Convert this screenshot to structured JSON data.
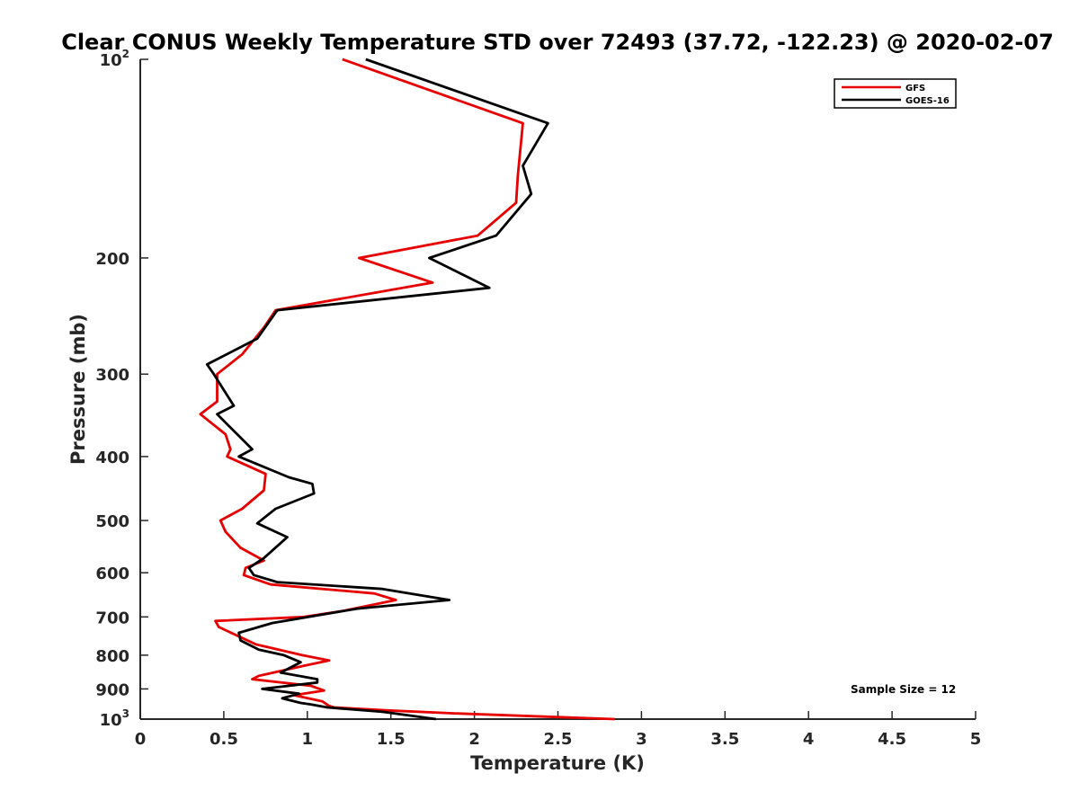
{
  "chart_data": {
    "type": "line",
    "title": "Clear CONUS Weekly Temperature STD over 72493 (37.72, -122.23) @ 2020-02-07",
    "xlabel": "Temperature (K)",
    "ylabel": "Pressure (mb)",
    "xlim": [
      0,
      5
    ],
    "ylim": [
      100,
      1000
    ],
    "y_scale": "log",
    "y_reversed": true,
    "x_ticks": [
      "0",
      "0.5",
      "1",
      "1.5",
      "2",
      "2.5",
      "3",
      "3.5",
      "4",
      "4.5",
      "5"
    ],
    "y_ticks": [
      {
        "value": 100,
        "label": "10",
        "sup": "2"
      },
      {
        "value": 200,
        "label": "200"
      },
      {
        "value": 300,
        "label": "300"
      },
      {
        "value": 400,
        "label": "400"
      },
      {
        "value": 500,
        "label": "500"
      },
      {
        "value": 600,
        "label": "600"
      },
      {
        "value": 700,
        "label": "700"
      },
      {
        "value": 800,
        "label": "800"
      },
      {
        "value": 900,
        "label": "900"
      },
      {
        "value": 1000,
        "label": "10",
        "sup": "3"
      }
    ],
    "grid": false,
    "legend_position": "top-right",
    "annotation": "Sample Size = 12",
    "series": [
      {
        "name": "GFS",
        "color": "#e60000",
        "points": [
          [
            1.21,
            100
          ],
          [
            2.29,
            125
          ],
          [
            2.26,
            150
          ],
          [
            2.25,
            165
          ],
          [
            2.02,
            185
          ],
          [
            1.31,
            200
          ],
          [
            1.75,
            218
          ],
          [
            0.81,
            240
          ],
          [
            0.74,
            255
          ],
          [
            0.61,
            280
          ],
          [
            0.46,
            300
          ],
          [
            0.46,
            330
          ],
          [
            0.36,
            345
          ],
          [
            0.51,
            370
          ],
          [
            0.54,
            390
          ],
          [
            0.52,
            400
          ],
          [
            0.75,
            425
          ],
          [
            0.74,
            450
          ],
          [
            0.61,
            480
          ],
          [
            0.48,
            500
          ],
          [
            0.51,
            520
          ],
          [
            0.6,
            550
          ],
          [
            0.74,
            575
          ],
          [
            0.63,
            590
          ],
          [
            0.62,
            605
          ],
          [
            0.78,
            625
          ],
          [
            1.4,
            645
          ],
          [
            1.53,
            660
          ],
          [
            1.22,
            685
          ],
          [
            0.98,
            700
          ],
          [
            0.45,
            710
          ],
          [
            0.47,
            725
          ],
          [
            0.69,
            770
          ],
          [
            0.97,
            800
          ],
          [
            1.13,
            815
          ],
          [
            0.98,
            830
          ],
          [
            0.71,
            860
          ],
          [
            0.67,
            870
          ],
          [
            1.02,
            890
          ],
          [
            1.1,
            905
          ],
          [
            0.92,
            920
          ],
          [
            1.09,
            940
          ],
          [
            1.13,
            955
          ],
          [
            1.16,
            960
          ],
          [
            1.48,
            970
          ],
          [
            1.88,
            980
          ],
          [
            2.84,
            1000
          ]
        ]
      },
      {
        "name": "GOES-16",
        "color": "#000000",
        "points": [
          [
            1.35,
            100
          ],
          [
            2.44,
            125
          ],
          [
            2.29,
            145
          ],
          [
            2.34,
            160
          ],
          [
            2.13,
            185
          ],
          [
            1.73,
            200
          ],
          [
            2.09,
            222
          ],
          [
            0.82,
            240
          ],
          [
            0.7,
            265
          ],
          [
            0.4,
            290
          ],
          [
            0.44,
            300
          ],
          [
            0.56,
            335
          ],
          [
            0.46,
            345
          ],
          [
            0.67,
            390
          ],
          [
            0.59,
            400
          ],
          [
            0.89,
            430
          ],
          [
            1.03,
            440
          ],
          [
            1.04,
            455
          ],
          [
            0.81,
            480
          ],
          [
            0.7,
            505
          ],
          [
            0.88,
            530
          ],
          [
            0.74,
            570
          ],
          [
            0.65,
            590
          ],
          [
            0.68,
            605
          ],
          [
            0.82,
            620
          ],
          [
            1.45,
            635
          ],
          [
            1.85,
            660
          ],
          [
            1.3,
            680
          ],
          [
            0.79,
            715
          ],
          [
            0.59,
            740
          ],
          [
            0.6,
            760
          ],
          [
            0.71,
            785
          ],
          [
            0.86,
            800
          ],
          [
            0.96,
            820
          ],
          [
            0.84,
            850
          ],
          [
            1.06,
            870
          ],
          [
            1.06,
            880
          ],
          [
            0.73,
            900
          ],
          [
            0.95,
            915
          ],
          [
            0.85,
            930
          ],
          [
            0.96,
            945
          ],
          [
            1.02,
            950
          ],
          [
            1.12,
            960
          ],
          [
            1.45,
            975
          ],
          [
            1.77,
            1000
          ]
        ]
      }
    ]
  }
}
